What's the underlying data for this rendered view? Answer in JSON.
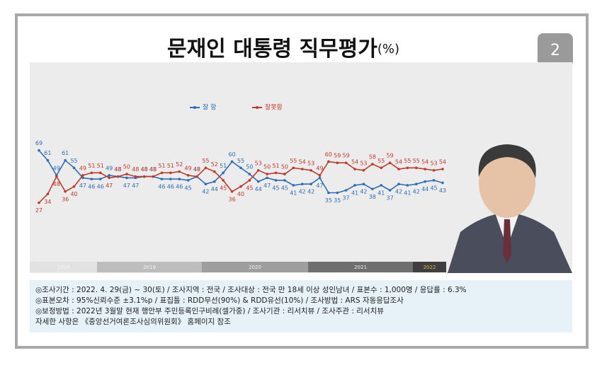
{
  "badge": "2",
  "chart_data": {
    "type": "line",
    "title": "문재인 대통령 직무평가",
    "title_unit": "(%)",
    "ylim": [
      20,
      75
    ],
    "series": [
      {
        "name": "잘 함",
        "color": "#2e6db4",
        "values": [
          69,
          61,
          49,
          61,
          55,
          47,
          46,
          46,
          49,
          48,
          47,
          47,
          48,
          48,
          46,
          46,
          46,
          45,
          48,
          42,
          44,
          51,
          60,
          55,
          50,
          44,
          47,
          45,
          45,
          41,
          42,
          42,
          47,
          35,
          35,
          37,
          41,
          42,
          38,
          41,
          37,
          42,
          41,
          42,
          44,
          45,
          43
        ]
      },
      {
        "name": "잘못함",
        "color": "#c0392b",
        "values": [
          27,
          34,
          48,
          36,
          40,
          49,
          51,
          51,
          47,
          48,
          50,
          48,
          48,
          48,
          51,
          51,
          52,
          49,
          48,
          55,
          52,
          45,
          36,
          40,
          45,
          53,
          50,
          51,
          50,
          55,
          54,
          53,
          49,
          60,
          59,
          59,
          54,
          53,
          58,
          55,
          59,
          54,
          55,
          55,
          54,
          53,
          54
        ]
      }
    ],
    "year_bands": [
      "2018",
      "2019",
      "2020",
      "2021",
      "2022"
    ]
  },
  "footer": {
    "lines": [
      "◎조사기간 : 2022. 4. 29(금) ~ 30(토) / 조사지역 : 전국 / 조사대상 : 전국 만 18세 이상 성인남녀 / 표본수 : 1,000명 / 응답률 : 6.3%",
      "◎표본오차 : 95%신뢰수준 ±3.1%p / 표집틀 : RDD무선(90%) & RDD유선(10%) / 조사방법 : ARS 자동응답조사",
      "◎보정방법 : 2022년 3월말 현재 행안부 주민등록인구비례(셀가중) / 조사기관 : 리서치뷰 / 조사주관 : 리서치뷰",
      "자세한 사항은 《중앙선거여론조사심의위원회》 홈페이지 참조"
    ]
  }
}
